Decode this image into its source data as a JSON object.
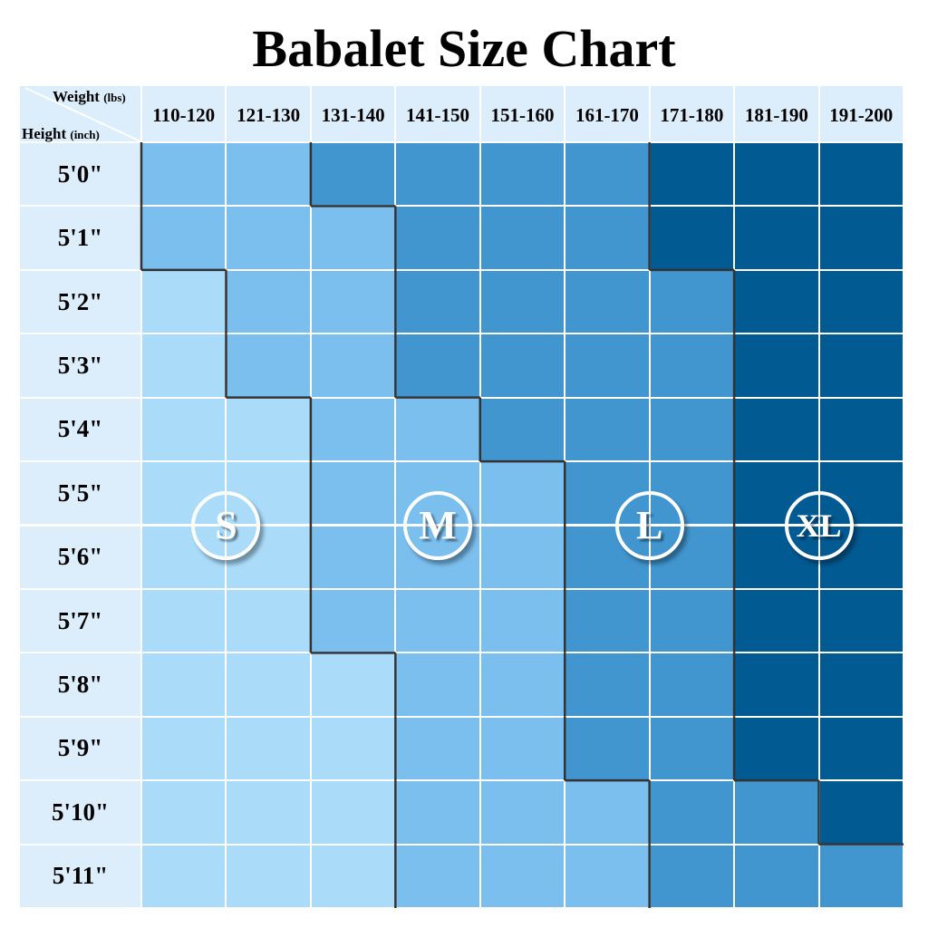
{
  "chart_data": {
    "type": "heatmap",
    "title": "Babalet Size Chart",
    "corner": {
      "x_label": "Weight",
      "x_unit": "(lbs)",
      "y_label": "Height",
      "y_unit": "(inch)"
    },
    "columns": [
      "110-120",
      "121-130",
      "131-140",
      "141-150",
      "151-160",
      "161-170",
      "171-180",
      "181-190",
      "191-200"
    ],
    "rows": [
      "5'0\"",
      "5'1\"",
      "5'2\"",
      "5'3\"",
      "5'4\"",
      "5'5\"",
      "5'6\"",
      "5'7\"",
      "5'8\"",
      "5'9\"",
      "5'10\"",
      "5'11\""
    ],
    "sizes": [
      "S",
      "M",
      "L",
      "XL"
    ],
    "size_colors": {
      "S": "#aadcfa",
      "M": "#7bbfef",
      "L": "#4196cf",
      "XL": "#025a93"
    },
    "header_color": "#dcedfb",
    "region_border_color": "#333333",
    "cells": [
      [
        "M",
        "M",
        "L",
        "L",
        "L",
        "L",
        "XL",
        "XL",
        "XL"
      ],
      [
        "M",
        "M",
        "M",
        "L",
        "L",
        "L",
        "XL",
        "XL",
        "XL"
      ],
      [
        "S",
        "M",
        "M",
        "L",
        "L",
        "L",
        "L",
        "XL",
        "XL"
      ],
      [
        "S",
        "M",
        "M",
        "L",
        "L",
        "L",
        "L",
        "XL",
        "XL"
      ],
      [
        "S",
        "S",
        "M",
        "M",
        "L",
        "L",
        "L",
        "XL",
        "XL"
      ],
      [
        "S",
        "S",
        "M",
        "M",
        "M",
        "L",
        "L",
        "XL",
        "XL"
      ],
      [
        "S",
        "S",
        "M",
        "M",
        "M",
        "L",
        "L",
        "XL",
        "XL"
      ],
      [
        "S",
        "S",
        "M",
        "M",
        "M",
        "L",
        "L",
        "XL",
        "XL"
      ],
      [
        "S",
        "S",
        "S",
        "M",
        "M",
        "L",
        "L",
        "XL",
        "XL"
      ],
      [
        "S",
        "S",
        "S",
        "M",
        "M",
        "L",
        "L",
        "XL",
        "XL"
      ],
      [
        "S",
        "S",
        "S",
        "M",
        "M",
        "M",
        "L",
        "L",
        "XL"
      ],
      [
        "S",
        "S",
        "S",
        "M",
        "M",
        "M",
        "L",
        "L",
        "L"
      ]
    ]
  }
}
